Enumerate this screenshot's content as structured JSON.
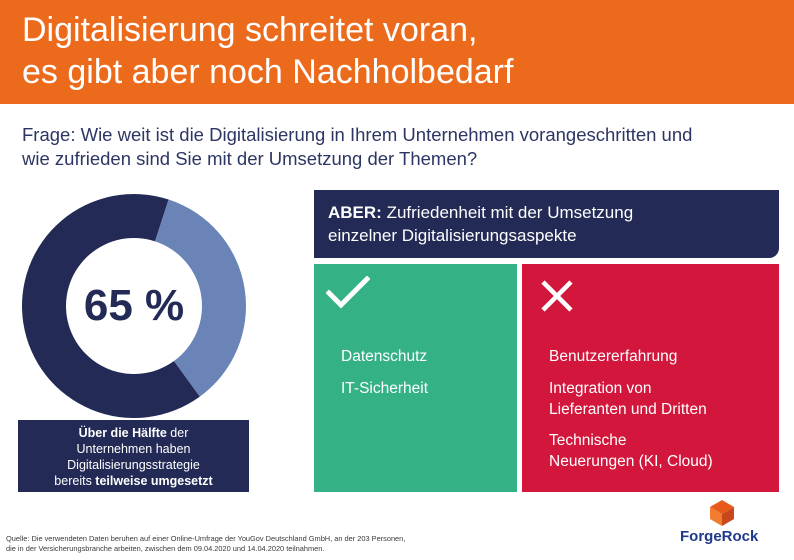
{
  "header": {
    "title_line1": "Digitalisierung schreitet voran,",
    "title_line2": "es gibt aber noch Nachholbedarf"
  },
  "question": {
    "line1": "Frage: Wie weit ist die Digitalisierung in Ihrem Unternehmen vorangeschritten und",
    "line2": "wie zufrieden sind Sie mit der Umsetzung der Themen?"
  },
  "donut": {
    "value_label": "65 %",
    "percent": 65,
    "caption": {
      "line1_bold": "Über die Hälfte",
      "line1_rest": " der",
      "line2": "Unternehmen haben",
      "line3": "Digitalisierungsstrategie",
      "line4_pre": "bereits ",
      "line4_bold": "teilweise umgesetzt"
    }
  },
  "aber": {
    "bold": "ABER:",
    "text_line1": " Zufriedenheit mit der Umsetzung",
    "text_line2": "einzelner Digitalisierungsaspekte"
  },
  "satisfied": {
    "icon": "checkmark-icon",
    "items": [
      "Datenschutz",
      "IT-Sicherheit"
    ]
  },
  "unsatisfied": {
    "icon": "cross-icon",
    "items": [
      {
        "line1": "Benutzererfahrung",
        "line2": ""
      },
      {
        "line1": "Integration von",
        "line2": "Lieferanten und Dritten"
      },
      {
        "line1": "Technische",
        "line2": "Neuerungen (KI, Cloud)"
      }
    ]
  },
  "logo": {
    "text": "ForgeRock"
  },
  "source": {
    "line1": "Quelle: Die verwendeten Daten beruhen auf einer Online-Umfrage der YouGov Deutschland GmbH, an der 203 Personen,",
    "line2": "die in der Versicherungsbranche arbeiten, zwischen dem 09.04.2020 und 14.04.2020 teilnahmen."
  },
  "colors": {
    "orange": "#ec6a1c",
    "navy": "#222a55",
    "light_blue": "#6a84b8",
    "green": "#35b186",
    "red": "#d2163c"
  }
}
